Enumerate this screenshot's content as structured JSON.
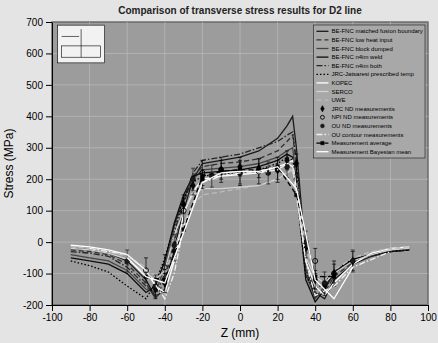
{
  "chart_data": {
    "type": "line",
    "title": "Comparison of transverse stress results for D2 line",
    "x_label": "Z (mm)",
    "y_label": "Stress (MPa)",
    "xlim": [
      -100,
      100
    ],
    "ylim": [
      -200,
      700
    ],
    "xticks": [
      -100,
      -80,
      -60,
      -40,
      -20,
      0,
      20,
      40,
      60,
      80,
      100
    ],
    "yticks": [
      -200,
      -100,
      0,
      100,
      200,
      300,
      400,
      500,
      600,
      700
    ],
    "grid": true,
    "legend": "upper right",
    "series": [
      {
        "name": "BE-FNC matched fusion boundary",
        "type": "line",
        "color": "#1a1a1a",
        "line_style": "solid",
        "x": [
          -90,
          -80,
          -70,
          -60,
          -50,
          -45,
          -40,
          -35,
          -30,
          -25,
          -20,
          -10,
          0,
          10,
          20,
          25,
          28,
          30,
          35,
          40,
          45,
          50,
          60,
          70,
          80,
          90
        ],
        "values": [
          -20,
          -25,
          -35,
          -60,
          -120,
          -175,
          -150,
          -20,
          100,
          200,
          250,
          260,
          270,
          290,
          330,
          370,
          400,
          300,
          -50,
          -160,
          -180,
          -120,
          -70,
          -45,
          -30,
          -20
        ]
      },
      {
        "name": "BE-FNC low heat input",
        "type": "line",
        "color": "#333333",
        "line_style": "dashed",
        "x": [
          -90,
          -80,
          -70,
          -60,
          -50,
          -45,
          -40,
          -35,
          -30,
          -25,
          -20,
          -10,
          0,
          10,
          20,
          25,
          28,
          30,
          35,
          40,
          45,
          50,
          60,
          70,
          80,
          90
        ],
        "values": [
          -25,
          -30,
          -40,
          -70,
          -130,
          -180,
          -120,
          0,
          120,
          210,
          240,
          250,
          255,
          265,
          290,
          320,
          340,
          250,
          -80,
          -170,
          -160,
          -110,
          -65,
          -40,
          -30,
          -25
        ]
      },
      {
        "name": "BE-FNC block dumped",
        "type": "line",
        "color": "#454545",
        "line_style": "solid",
        "x": [
          -90,
          -80,
          -70,
          -60,
          -50,
          -45,
          -40,
          -35,
          -30,
          -25,
          -20,
          -10,
          0,
          10,
          20,
          25,
          28,
          30,
          35,
          40,
          45,
          50,
          60,
          70,
          80,
          90
        ],
        "values": [
          -40,
          -50,
          -60,
          -90,
          -150,
          -160,
          -80,
          50,
          140,
          200,
          230,
          235,
          240,
          250,
          270,
          290,
          300,
          200,
          -100,
          -180,
          -140,
          -100,
          -60,
          -40,
          -30,
          -25
        ]
      },
      {
        "name": "BE-FNC n4im weld",
        "type": "line",
        "color": "#0d0d0d",
        "line_style": "solid",
        "x": [
          -90,
          -80,
          -70,
          -60,
          -50,
          -45,
          -40,
          -35,
          -30,
          -25,
          -20,
          -10,
          0,
          10,
          20,
          25,
          28,
          30,
          35,
          40,
          45,
          50,
          60,
          70,
          80,
          90
        ],
        "values": [
          -50,
          -60,
          -70,
          -100,
          -160,
          -140,
          -60,
          60,
          150,
          210,
          220,
          225,
          230,
          240,
          260,
          280,
          270,
          180,
          -120,
          -190,
          -150,
          -95,
          -55,
          -40,
          -30,
          -25
        ]
      },
      {
        "name": "BE-FNC n4im both",
        "type": "line",
        "color": "#262626",
        "line_style": "dashdot",
        "x": [
          -90,
          -80,
          -70,
          -60,
          -50,
          -45,
          -40,
          -35,
          -30,
          -25,
          -20,
          -10,
          0,
          10,
          20,
          25,
          28,
          30,
          35,
          40,
          45,
          50,
          60,
          70,
          80,
          90
        ],
        "values": [
          -30,
          -35,
          -45,
          -80,
          -140,
          -170,
          -100,
          30,
          130,
          220,
          260,
          270,
          280,
          300,
          320,
          340,
          350,
          260,
          -90,
          -175,
          -150,
          -100,
          -60,
          -40,
          -30,
          -25
        ]
      },
      {
        "name": "JRC-Jatsaresi prescribed temp",
        "type": "line",
        "color": "#000000",
        "line_style": "dotted",
        "x": [
          -90,
          -80,
          -70,
          -60,
          -50,
          -45,
          -40,
          -35,
          -30,
          -25,
          -20,
          -10,
          0,
          10,
          20,
          25,
          28,
          30,
          35,
          40,
          45,
          50,
          60,
          70,
          80,
          90
        ],
        "values": [
          -60,
          -75,
          -95,
          -140,
          -180,
          -130,
          -50,
          50,
          140,
          190,
          210,
          215,
          220,
          230,
          250,
          270,
          260,
          160,
          -110,
          -150,
          -130,
          -90,
          -55,
          -40,
          -30,
          -25
        ]
      },
      {
        "name": "KOPEC",
        "type": "line",
        "color": "#ffffff",
        "line_style": "solid",
        "x": [
          -90,
          -80,
          -70,
          -60,
          -50,
          -45,
          -40,
          -35,
          -30,
          -25,
          -20,
          -10,
          0,
          10,
          20,
          25,
          28,
          30,
          35,
          40,
          45,
          50,
          60,
          70,
          80,
          90
        ],
        "values": [
          -10,
          -15,
          -25,
          -40,
          -90,
          -140,
          -160,
          -60,
          90,
          160,
          200,
          210,
          215,
          220,
          240,
          250,
          240,
          150,
          -60,
          -140,
          -170,
          -130,
          -70,
          -35,
          -20,
          -15
        ]
      },
      {
        "name": "SERCO",
        "type": "line",
        "color": "#d2d2d2",
        "line_style": "solid",
        "x": [
          -90,
          -80,
          -70,
          -60,
          -50,
          -45,
          -40,
          -35,
          -30,
          -25,
          -20,
          -10,
          0,
          10,
          20,
          25,
          28,
          30,
          35,
          40,
          45,
          50,
          60,
          70,
          80,
          90
        ],
        "values": [
          -20,
          -25,
          -35,
          -55,
          -100,
          -120,
          -90,
          20,
          100,
          150,
          170,
          170,
          175,
          180,
          200,
          220,
          230,
          160,
          -50,
          -110,
          -130,
          -100,
          -60,
          -40,
          -25,
          -20
        ]
      },
      {
        "name": "UWE",
        "type": "line",
        "color": "#bdbdbd",
        "line_style": "dashed",
        "x": [
          -90,
          -80,
          -70,
          -60,
          -50,
          -45,
          -40,
          -35,
          -30,
          -25,
          -20,
          -10,
          0,
          10,
          20,
          25,
          28,
          30,
          35,
          40,
          45,
          50,
          60,
          70,
          80,
          90
        ],
        "values": [
          -15,
          -20,
          -30,
          -45,
          -80,
          -110,
          -100,
          -20,
          60,
          120,
          150,
          160,
          170,
          180,
          200,
          220,
          240,
          190,
          -20,
          -100,
          -120,
          -90,
          -50,
          -30,
          -20,
          -15
        ]
      },
      {
        "name": "JRC ND measurements",
        "type": "scatter",
        "color": "#000000",
        "marker": "diamond",
        "x": [
          -45,
          -40,
          -35,
          -30,
          -25,
          -20,
          -10,
          0,
          10,
          20,
          25,
          30,
          35,
          40,
          45,
          50,
          60
        ],
        "values": [
          -150,
          -130,
          -30,
          120,
          180,
          200,
          230,
          240,
          235,
          230,
          260,
          250,
          -20,
          -120,
          -140,
          -100,
          -60
        ],
        "error": [
          30,
          30,
          30,
          30,
          30,
          30,
          30,
          30,
          30,
          30,
          30,
          30,
          30,
          30,
          30,
          30,
          30
        ]
      },
      {
        "name": "NPI ND measurements",
        "type": "scatter",
        "color": "#000000",
        "marker": "circle-open",
        "x": [
          -50,
          -40,
          -30,
          -20,
          -10,
          0,
          10,
          20,
          30,
          40,
          50
        ],
        "values": [
          -90,
          -80,
          100,
          220,
          230,
          220,
          225,
          230,
          200,
          -60,
          -100
        ],
        "error": [
          40,
          40,
          40,
          40,
          40,
          40,
          40,
          40,
          40,
          40,
          40
        ]
      },
      {
        "name": "OU ND measurements",
        "type": "scatter",
        "color": "#1a1a1a",
        "marker": "circle",
        "x": [
          -60,
          -45,
          -35,
          -25,
          -15,
          0,
          15,
          25,
          35,
          45,
          60
        ],
        "values": [
          -60,
          -140,
          -10,
          200,
          210,
          220,
          220,
          240,
          0,
          -130,
          -60
        ],
        "error": [
          35,
          35,
          35,
          35,
          35,
          35,
          35,
          35,
          35,
          35,
          35
        ]
      },
      {
        "name": "OU contour measurements",
        "type": "line",
        "color": "#f0f0f0",
        "line_style": "dashdot",
        "x": [
          -80,
          -60,
          -50,
          -40,
          -35,
          -30,
          -20,
          -10,
          0,
          10,
          20,
          28,
          35,
          40,
          50,
          60,
          80
        ],
        "values": [
          -20,
          -40,
          -90,
          -180,
          -100,
          50,
          190,
          210,
          220,
          220,
          230,
          260,
          -60,
          -170,
          -140,
          -80,
          -30
        ]
      },
      {
        "name": "Measurement average",
        "type": "line",
        "color": "#000000",
        "line_style": "dashed",
        "marker": "square",
        "x": [
          -50,
          -40,
          -30,
          -20,
          -10,
          0,
          10,
          20,
          30,
          40,
          50
        ],
        "values": [
          -110,
          -120,
          40,
          210,
          225,
          230,
          230,
          240,
          150,
          -110,
          -110
        ]
      },
      {
        "name": "Measurement Bayesian mean",
        "type": "line",
        "color": "#ffffff",
        "line_style": "solid",
        "x": [
          -60,
          -50,
          -40,
          -30,
          -20,
          -10,
          0,
          10,
          20,
          30,
          40,
          50,
          60
        ],
        "values": [
          -50,
          -110,
          -130,
          30,
          190,
          220,
          225,
          225,
          240,
          170,
          -120,
          -180,
          -80
        ]
      }
    ]
  }
}
